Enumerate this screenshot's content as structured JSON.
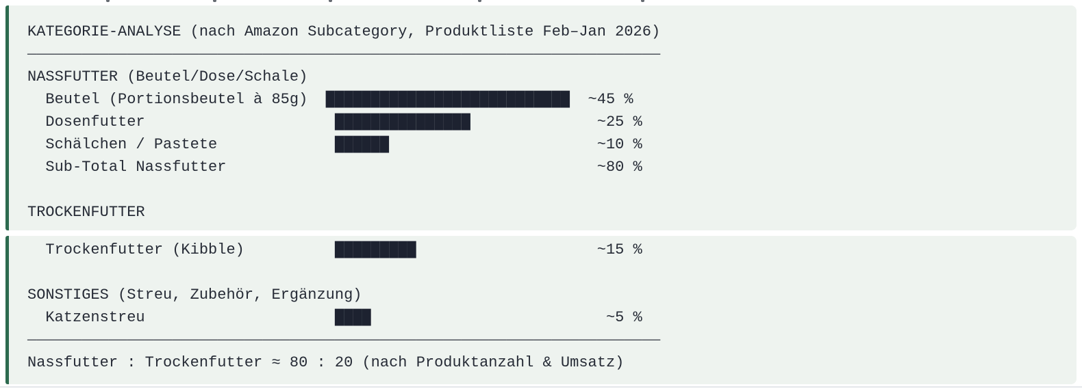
{
  "colors": {
    "accent_green": "#2d6a4f",
    "panel_background": "#eef3ef",
    "text": "#262b36",
    "bar_fill": "#1d2230",
    "rule": "#4d525b",
    "bottom_divider": "#e4e7ea"
  },
  "content": {
    "bar_char": "█",
    "rule": "——————————————————————————————————————————————————————————————————————"
  },
  "panels": [
    {
      "name": "analysis-panel-top",
      "lines": [
        {
          "type": "title",
          "name": "chart-title",
          "text": "KATEGORIE-ANALYSE (nach Amazon Subcategory, Produktliste Feb–Jan 2026)"
        },
        {
          "type": "rule",
          "name": "rule-top"
        },
        {
          "type": "heading",
          "name": "section-heading-nassfutter",
          "text": "NASSFUTTER (Beutel/Dose/Schale)"
        },
        {
          "type": "row",
          "name": "row-beutel",
          "label": "Beutel (Portionsbeutel à 85g)",
          "blocks": 27,
          "pct": "~45 %"
        },
        {
          "type": "row",
          "name": "row-dosenfutter",
          "label": "Dosenfutter",
          "blocks": 15,
          "pct": "~25 %"
        },
        {
          "type": "row",
          "name": "row-schaelchen-pastete",
          "label": "Schälchen / Pastete",
          "blocks": 6,
          "pct": "~10 %"
        },
        {
          "type": "row",
          "name": "row-subtotal-nassfutter",
          "label": "Sub-Total Nassfutter",
          "blocks": 0,
          "pct": "~80 %"
        },
        {
          "type": "spacer",
          "name": "blank-line"
        },
        {
          "type": "heading",
          "name": "section-heading-trockenfutter",
          "text": "TROCKENFUTTER"
        }
      ]
    },
    {
      "name": "analysis-panel-bottom",
      "lines": [
        {
          "type": "row",
          "name": "row-trockenfutter-kibble",
          "label": "Trockenfutter (Kibble)",
          "blocks": 9,
          "pct": "~15 %"
        },
        {
          "type": "spacer",
          "name": "blank-line"
        },
        {
          "type": "heading",
          "name": "section-heading-sonstiges",
          "text": "SONSTIGES (Streu, Zubehör, Ergänzung)"
        },
        {
          "type": "row",
          "name": "row-katzenstreu",
          "label": "Katzenstreu",
          "blocks": 4,
          "pct": "~5 %"
        },
        {
          "type": "rule",
          "name": "rule-bottom"
        },
        {
          "type": "footer",
          "name": "summary-note",
          "text": "Nassfutter : Trockenfutter ≈ 80 : 20 (nach Produktanzahl & Umsatz)"
        }
      ]
    }
  ],
  "chart_data": {
    "type": "bar",
    "title": "KATEGORIE-ANALYSE (nach Amazon Subcategory, Produktliste Feb–Jan 2026)",
    "orientation": "horizontal",
    "unit": "%",
    "values_are_approximate": true,
    "xlim": [
      0,
      50
    ],
    "groups": [
      {
        "heading": "NASSFUTTER (Beutel/Dose/Schale)",
        "items": [
          {
            "label": "Beutel (Portionsbeutel à 85g)",
            "value_pct": 45,
            "has_bar": true
          },
          {
            "label": "Dosenfutter",
            "value_pct": 25,
            "has_bar": true
          },
          {
            "label": "Schälchen / Pastete",
            "value_pct": 10,
            "has_bar": true
          },
          {
            "label": "Sub-Total Nassfutter",
            "value_pct": 80,
            "has_bar": false,
            "is_subtotal": true
          }
        ]
      },
      {
        "heading": "TROCKENFUTTER",
        "items": [
          {
            "label": "Trockenfutter (Kibble)",
            "value_pct": 15,
            "has_bar": true
          }
        ]
      },
      {
        "heading": "SONSTIGES (Streu, Zubehör, Ergänzung)",
        "items": [
          {
            "label": "Katzenstreu",
            "value_pct": 5,
            "has_bar": true
          }
        ]
      }
    ],
    "footnote": "Nassfutter : Trockenfutter ≈ 80 : 20 (nach Produktanzahl & Umsatz)"
  }
}
